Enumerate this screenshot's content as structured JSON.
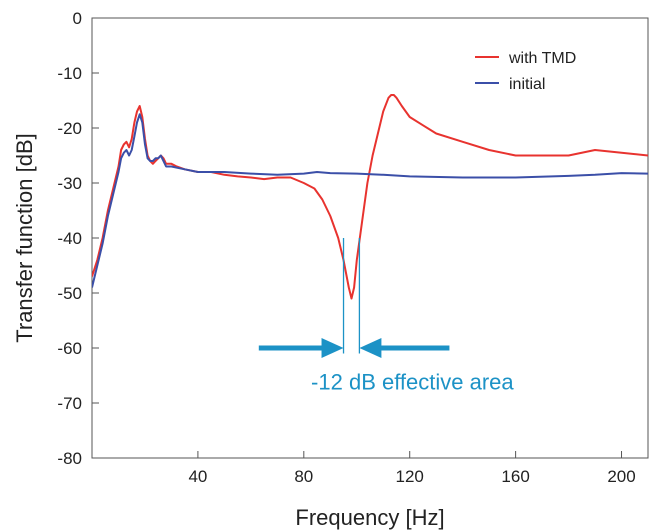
{
  "chart_data": {
    "type": "line",
    "xlabel": "Frequency [Hz]",
    "ylabel": "Transfer function [dB]",
    "xlim": [
      0,
      210
    ],
    "ylim": [
      -80,
      0
    ],
    "xticks": [
      40,
      80,
      120,
      160,
      200
    ],
    "yticks": [
      0,
      -10,
      -20,
      -30,
      -40,
      -50,
      -60,
      -70,
      -80
    ],
    "grid": false,
    "legend_position": "top-right",
    "series": [
      {
        "name": "with TMD",
        "color": "#e8332f",
        "points": [
          [
            0,
            -47
          ],
          [
            2,
            -44
          ],
          [
            4,
            -40
          ],
          [
            6,
            -35
          ],
          [
            8,
            -31
          ],
          [
            10,
            -27
          ],
          [
            11,
            -24
          ],
          [
            12,
            -23
          ],
          [
            13,
            -22.5
          ],
          [
            14,
            -23.5
          ],
          [
            15,
            -22
          ],
          [
            16,
            -19
          ],
          [
            17,
            -17
          ],
          [
            18,
            -16
          ],
          [
            19,
            -18
          ],
          [
            20,
            -22
          ],
          [
            21,
            -25
          ],
          [
            22,
            -26
          ],
          [
            23,
            -26.5
          ],
          [
            24,
            -26
          ],
          [
            25,
            -25.5
          ],
          [
            26,
            -25
          ],
          [
            27,
            -25.5
          ],
          [
            28,
            -26.5
          ],
          [
            30,
            -26.5
          ],
          [
            32,
            -27
          ],
          [
            35,
            -27.5
          ],
          [
            40,
            -28
          ],
          [
            45,
            -28
          ],
          [
            50,
            -28.5
          ],
          [
            55,
            -28.8
          ],
          [
            60,
            -29
          ],
          [
            65,
            -29.3
          ],
          [
            70,
            -29
          ],
          [
            75,
            -29
          ],
          [
            80,
            -30
          ],
          [
            84,
            -31
          ],
          [
            87,
            -33
          ],
          [
            90,
            -36
          ],
          [
            93,
            -40
          ],
          [
            95,
            -44
          ],
          [
            97,
            -49
          ],
          [
            98,
            -51
          ],
          [
            99,
            -49
          ],
          [
            100,
            -44
          ],
          [
            102,
            -37
          ],
          [
            104,
            -30
          ],
          [
            106,
            -25
          ],
          [
            108,
            -21
          ],
          [
            110,
            -17
          ],
          [
            112,
            -14.5
          ],
          [
            113,
            -14
          ],
          [
            114,
            -14
          ],
          [
            115,
            -14.5
          ],
          [
            117,
            -16
          ],
          [
            120,
            -18
          ],
          [
            125,
            -19.5
          ],
          [
            130,
            -21
          ],
          [
            140,
            -22.5
          ],
          [
            150,
            -24
          ],
          [
            160,
            -25
          ],
          [
            170,
            -25
          ],
          [
            180,
            -25
          ],
          [
            190,
            -24
          ],
          [
            200,
            -24.5
          ],
          [
            210,
            -25
          ]
        ]
      },
      {
        "name": "initial",
        "color": "#3b4fa8",
        "points": [
          [
            0,
            -49
          ],
          [
            2,
            -45
          ],
          [
            4,
            -41
          ],
          [
            6,
            -36
          ],
          [
            8,
            -32
          ],
          [
            10,
            -28
          ],
          [
            11,
            -25.5
          ],
          [
            12,
            -24.5
          ],
          [
            13,
            -24
          ],
          [
            14,
            -25
          ],
          [
            15,
            -24
          ],
          [
            16,
            -21.5
          ],
          [
            17,
            -19
          ],
          [
            18,
            -17.5
          ],
          [
            19,
            -19
          ],
          [
            20,
            -23
          ],
          [
            21,
            -25.5
          ],
          [
            22,
            -26
          ],
          [
            23,
            -26
          ],
          [
            24,
            -25.5
          ],
          [
            25,
            -25.5
          ],
          [
            26,
            -25
          ],
          [
            27,
            -26
          ],
          [
            28,
            -27
          ],
          [
            30,
            -27
          ],
          [
            35,
            -27.5
          ],
          [
            40,
            -28
          ],
          [
            50,
            -28
          ],
          [
            60,
            -28.3
          ],
          [
            70,
            -28.5
          ],
          [
            80,
            -28.3
          ],
          [
            85,
            -28
          ],
          [
            90,
            -28.2
          ],
          [
            100,
            -28.3
          ],
          [
            110,
            -28.5
          ],
          [
            120,
            -28.8
          ],
          [
            140,
            -29
          ],
          [
            160,
            -29
          ],
          [
            180,
            -28.7
          ],
          [
            190,
            -28.5
          ],
          [
            200,
            -28.2
          ],
          [
            210,
            -28.3
          ]
        ]
      }
    ],
    "annotation": {
      "text": "-12 dB effective area",
      "color": "#1c92c6",
      "marker_lines_x": [
        95,
        101
      ],
      "marker_line_y_range": [
        -40,
        -61
      ],
      "arrow_left": {
        "from_x": 63,
        "to_x": 95,
        "y": -60
      },
      "arrow_right": {
        "from_x": 135,
        "to_x": 101,
        "y": -60
      },
      "text_position": {
        "x": 121,
        "y": -67.5
      }
    }
  }
}
